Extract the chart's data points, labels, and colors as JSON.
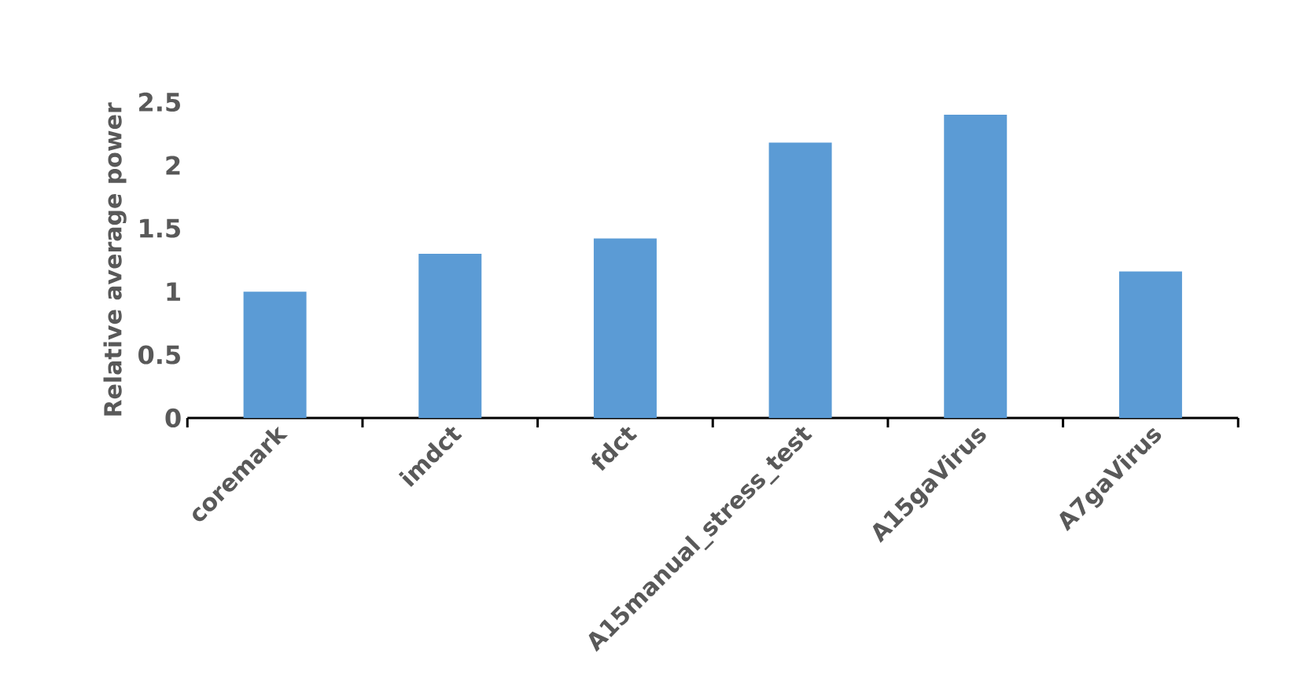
{
  "chart_data": {
    "type": "bar",
    "ylabel": "Relative average power",
    "categories": [
      "coremark",
      "imdct",
      "fdct",
      "A15manual_stress_test",
      "A15gaVirus",
      "A7gaVirus"
    ],
    "values": [
      1.0,
      1.3,
      1.42,
      2.18,
      2.4,
      1.16
    ],
    "color": "#5b9bd5",
    "ylim": [
      0,
      2.5
    ],
    "yticks": [
      0,
      0.5,
      1,
      1.5,
      2,
      2.5
    ],
    "grid": false
  }
}
